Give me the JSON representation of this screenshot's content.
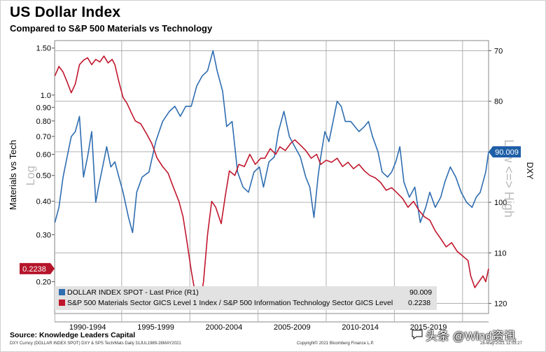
{
  "title": "US Dollar Index",
  "subtitle": "Compared to S&P 500 Materials vs Technology",
  "source": "Source: Knowledge Leaders Capital",
  "meta": {
    "left": "DXY Curncy (DOLLAR INDEX SPOT) DXY & SPS Tech/Mats  Daily 31JUL1989-28MAY2021",
    "center": "Copyright© 2021 Bloomberg Finance L.P.",
    "right": "28-May-2021 11:03:27"
  },
  "watermark": "头条 @Wind资讯",
  "chart_data": {
    "type": "line",
    "x_range": [
      1989.58,
      2021.41
    ],
    "x_tick_labels": [
      "1990-1994",
      "1995-1999",
      "2000-2004",
      "2005-2009",
      "2010-2014",
      "2015-2019"
    ],
    "x_tick_centers": [
      1992,
      1997,
      2002,
      2007,
      2012,
      2017
    ],
    "x_gridlines": [
      1989.6,
      1994.5,
      1999.5,
      2004.5,
      2009.5,
      2014.5,
      2019.5
    ],
    "left_axis": {
      "label": "Materials vs Tech",
      "scale_note": "Log",
      "scale": "log",
      "range": [
        0.152,
        1.6
      ],
      "ticks": [
        0.2,
        0.3,
        0.4,
        0.5,
        0.6,
        0.7,
        0.8,
        0.9,
        1.0,
        1.5
      ],
      "tick_labels": [
        "0.20",
        "0.30",
        "0.40",
        "0.50",
        "0.60",
        "0.70",
        "0.80",
        "0.90",
        "1.0",
        "1.50"
      ],
      "last_value_label": "0.2238"
    },
    "right_axis": {
      "label": "DXY",
      "annotation": "Low <=> High",
      "inverted": true,
      "range": [
        68,
        122
      ],
      "ticks": [
        70,
        80,
        90,
        100,
        110,
        120
      ],
      "last_value_label": "90.009"
    },
    "series": [
      {
        "name": "DOLLAR INDEX SPOT - Last Price (R1)",
        "legend_value": "90.009",
        "axis": "right",
        "color": "#2e6db0",
        "x": [
          1989.6,
          1989.9,
          1990.2,
          1990.5,
          1990.8,
          1991.1,
          1991.4,
          1991.7,
          1992.0,
          1992.3,
          1992.6,
          1992.8,
          1993.1,
          1993.4,
          1993.7,
          1994.0,
          1994.3,
          1994.6,
          1995.0,
          1995.3,
          1995.6,
          1996.0,
          1996.5,
          1997.0,
          1997.5,
          1998.0,
          1998.4,
          1998.8,
          1999.2,
          1999.6,
          2000.0,
          2000.4,
          2000.8,
          2001.2,
          2001.5,
          2001.9,
          2002.2,
          2002.6,
          2003.0,
          2003.4,
          2003.8,
          2004.2,
          2004.6,
          2004.9,
          2005.3,
          2005.7,
          2006.0,
          2006.4,
          2006.8,
          2007.2,
          2007.6,
          2008.0,
          2008.3,
          2008.6,
          2008.9,
          2009.1,
          2009.4,
          2009.7,
          2010.0,
          2010.3,
          2010.6,
          2010.9,
          2011.3,
          2011.6,
          2011.9,
          2012.3,
          2012.6,
          2012.9,
          2013.3,
          2013.6,
          2014.0,
          2014.3,
          2014.6,
          2014.9,
          2015.2,
          2015.6,
          2016.0,
          2016.4,
          2016.8,
          2017.1,
          2017.5,
          2017.9,
          2018.2,
          2018.6,
          2019.0,
          2019.4,
          2019.8,
          2020.2,
          2020.5,
          2020.8,
          2021.0,
          2021.2,
          2021.41
        ],
        "y": [
          104,
          101,
          95,
          91,
          87,
          86,
          83,
          95,
          91,
          86,
          100,
          97,
          93,
          89,
          93,
          92,
          95,
          98,
          103,
          106,
          98,
          95,
          94,
          88,
          84,
          82,
          81,
          83,
          81,
          81,
          77,
          75,
          74,
          70,
          74,
          78,
          85,
          84,
          94,
          97,
          98,
          94,
          93,
          97,
          92,
          91,
          86,
          82,
          87,
          89,
          91,
          95,
          97,
          103,
          95,
          91,
          86,
          88,
          84,
          80,
          81,
          84,
          84,
          85,
          86,
          85,
          84,
          87,
          90,
          94,
          95,
          94,
          92,
          89,
          96,
          99,
          97,
          104,
          101,
          98,
          101,
          99,
          96,
          93,
          95,
          98,
          100,
          101,
          99,
          98,
          96,
          94,
          90.009
        ]
      },
      {
        "name": "S&P 500 Materials Sector GICS Level 1 Index / S&P 500 Information Technology Sector GICS Level",
        "legend_value": "0.2238",
        "axis": "left",
        "color": "#c0172d",
        "x": [
          1989.6,
          1989.9,
          1990.2,
          1990.5,
          1990.8,
          1991.1,
          1991.4,
          1991.7,
          1992.0,
          1992.3,
          1992.6,
          1992.9,
          1993.2,
          1993.5,
          1993.8,
          1994.0,
          1994.3,
          1994.6,
          1994.9,
          1995.2,
          1995.5,
          1995.9,
          1996.3,
          1996.7,
          1997.1,
          1997.5,
          1997.9,
          1998.3,
          1998.7,
          1999.0,
          1999.3,
          1999.6,
          1999.9,
          2000.2,
          2000.5,
          2000.8,
          2001.1,
          2001.4,
          2001.8,
          2002.1,
          2002.4,
          2002.8,
          2003.1,
          2003.5,
          2003.9,
          2004.3,
          2004.7,
          2005.0,
          2005.4,
          2005.8,
          2006.1,
          2006.5,
          2006.9,
          2007.2,
          2007.6,
          2008.0,
          2008.4,
          2008.8,
          2009.1,
          2009.5,
          2009.9,
          2010.3,
          2010.7,
          2011.1,
          2011.5,
          2011.9,
          2012.3,
          2012.7,
          2013.1,
          2013.5,
          2013.9,
          2014.3,
          2014.7,
          2015.1,
          2015.5,
          2015.9,
          2016.3,
          2016.7,
          2017.1,
          2017.5,
          2017.9,
          2018.3,
          2018.7,
          2019.1,
          2019.5,
          2019.9,
          2020.1,
          2020.4,
          2020.7,
          2021.0,
          2021.2,
          2021.41
        ],
        "y": [
          1.18,
          1.28,
          1.22,
          1.12,
          1.02,
          1.1,
          1.3,
          1.35,
          1.38,
          1.3,
          1.36,
          1.33,
          1.4,
          1.32,
          1.36,
          1.3,
          1.12,
          0.98,
          0.93,
          0.86,
          0.8,
          0.78,
          0.72,
          0.66,
          0.58,
          0.54,
          0.51,
          0.45,
          0.4,
          0.35,
          0.28,
          0.22,
          0.18,
          0.16,
          0.2,
          0.3,
          0.4,
          0.38,
          0.33,
          0.42,
          0.52,
          0.5,
          0.55,
          0.54,
          0.6,
          0.55,
          0.58,
          0.58,
          0.63,
          0.6,
          0.64,
          0.62,
          0.66,
          0.68,
          0.65,
          0.62,
          0.58,
          0.6,
          0.55,
          0.57,
          0.56,
          0.58,
          0.54,
          0.56,
          0.53,
          0.55,
          0.52,
          0.5,
          0.49,
          0.47,
          0.44,
          0.45,
          0.43,
          0.41,
          0.38,
          0.4,
          0.37,
          0.35,
          0.34,
          0.31,
          0.29,
          0.27,
          0.28,
          0.26,
          0.25,
          0.24,
          0.21,
          0.19,
          0.2,
          0.21,
          0.2,
          0.2238
        ]
      }
    ]
  }
}
